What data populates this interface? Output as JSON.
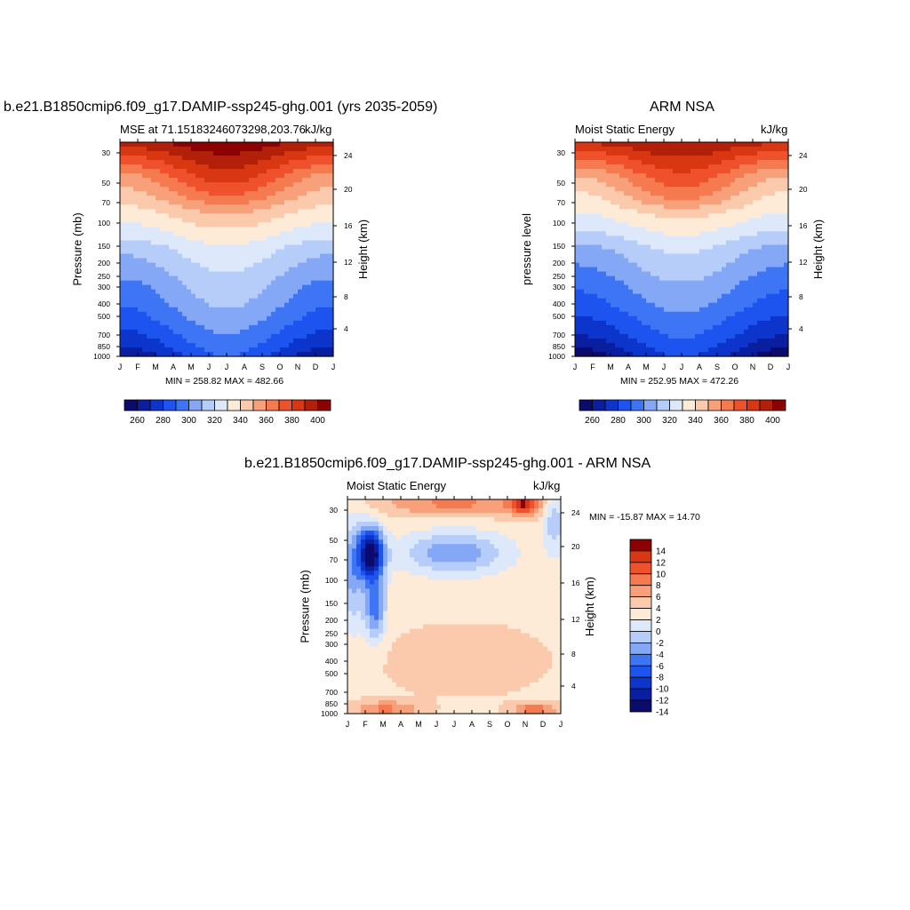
{
  "panels": [
    {
      "title": "b.e21.B1850cmip6.f09_g17.DAMIP-ssp245-ghg.001 (yrs 2035-2059)",
      "subtitle_left": "MSE at 71.15183246073298,203.76",
      "subtitle_right": "kJ/kg",
      "ylabel_left": "Pressure (mb)",
      "ylabel_right": "Height (km)",
      "minmax": "MIN = 258.82 MAX = 482.66"
    },
    {
      "title": "ARM NSA",
      "subtitle_left": "Moist Static Energy",
      "subtitle_right": "kJ/kg",
      "ylabel_left": "pressure level",
      "ylabel_right": "Height (km)",
      "minmax": "MIN = 252.95 MAX = 472.26"
    },
    {
      "title": "b.e21.B1850cmip6.f09_g17.DAMIP-ssp245-ghg.001 - ARM NSA",
      "subtitle_left": "Moist Static Energy",
      "subtitle_right": "kJ/kg",
      "ylabel_left": "Pressure (mb)",
      "ylabel_right": "Height (km)",
      "minmax": "MIN = -15.87 MAX =  14.70"
    }
  ],
  "chart_data": [
    {
      "type": "heatmap",
      "title": "b.e21.B1850cmip6.f09_g17.DAMIP-ssp245-ghg.001 (yrs 2035-2059)",
      "x": [
        "J",
        "F",
        "M",
        "A",
        "M",
        "J",
        "J",
        "A",
        "S",
        "O",
        "N",
        "D",
        "J"
      ],
      "y_pressure_ticks": [
        "30",
        "50",
        "70",
        "100",
        "150",
        "200",
        "250",
        "300",
        "400",
        "500",
        "700",
        "850",
        "1000"
      ],
      "y_height_ticks": [
        "24",
        "20",
        "16",
        "12",
        "8",
        "4"
      ],
      "colorbar_ticks": [
        "260",
        "280",
        "300",
        "320",
        "340",
        "360",
        "380",
        "400"
      ],
      "colorbar_colors": [
        "#0b0b6e",
        "#0a1fa0",
        "#0c35cc",
        "#1d54f0",
        "#3e75f5",
        "#84a8f6",
        "#b6cdfa",
        "#dde9fa",
        "#fdebd7",
        "#fbc9ac",
        "#f8a07a",
        "#f57a4f",
        "#ef512c",
        "#d93612",
        "#b3200a",
        "#8b0000"
      ],
      "min": 258.82,
      "max": 482.66,
      "profile_winter": [
        395,
        375,
        355,
        345,
        335,
        325,
        312,
        305,
        297,
        291,
        285,
        275,
        262
      ],
      "profile_summer": [
        410,
        395,
        385,
        370,
        350,
        338,
        328,
        322,
        316,
        312,
        305,
        298,
        290
      ]
    },
    {
      "type": "heatmap",
      "title": "ARM NSA",
      "x": [
        "J",
        "F",
        "M",
        "A",
        "M",
        "J",
        "J",
        "A",
        "S",
        "O",
        "N",
        "D",
        "J"
      ],
      "y_pressure_ticks": [
        "30",
        "50",
        "70",
        "100",
        "150",
        "200",
        "250",
        "300",
        "400",
        "500",
        "700",
        "850",
        "1000"
      ],
      "y_height_ticks": [
        "24",
        "20",
        "16",
        "12",
        "8",
        "4"
      ],
      "colorbar_ticks": [
        "260",
        "280",
        "300",
        "320",
        "340",
        "360",
        "380",
        "400"
      ],
      "min": 252.95,
      "max": 472.26,
      "profile_winter": [
        395,
        372,
        352,
        342,
        333,
        323,
        310,
        303,
        296,
        290,
        282,
        272,
        257
      ],
      "profile_summer": [
        405,
        392,
        380,
        368,
        348,
        336,
        326,
        320,
        313,
        308,
        300,
        294,
        285
      ]
    },
    {
      "type": "heatmap",
      "title": "b.e21.B1850cmip6.f09_g17.DAMIP-ssp245-ghg.001 - ARM NSA",
      "x": [
        "J",
        "F",
        "M",
        "A",
        "M",
        "J",
        "J",
        "A",
        "S",
        "O",
        "N",
        "D",
        "J"
      ],
      "y_pressure_ticks": [
        "30",
        "50",
        "70",
        "100",
        "150",
        "200",
        "250",
        "300",
        "400",
        "500",
        "700",
        "850",
        "1000"
      ],
      "y_height_ticks": [
        "24",
        "20",
        "16",
        "12",
        "8",
        "4"
      ],
      "colorbar_ticks": [
        "14",
        "12",
        "10",
        "8",
        "6",
        "4",
        "2",
        "0",
        "-2",
        "-4",
        "-6",
        "-8",
        "-10",
        "-12",
        "-14"
      ],
      "min": -15.87,
      "max": 14.7
    }
  ]
}
